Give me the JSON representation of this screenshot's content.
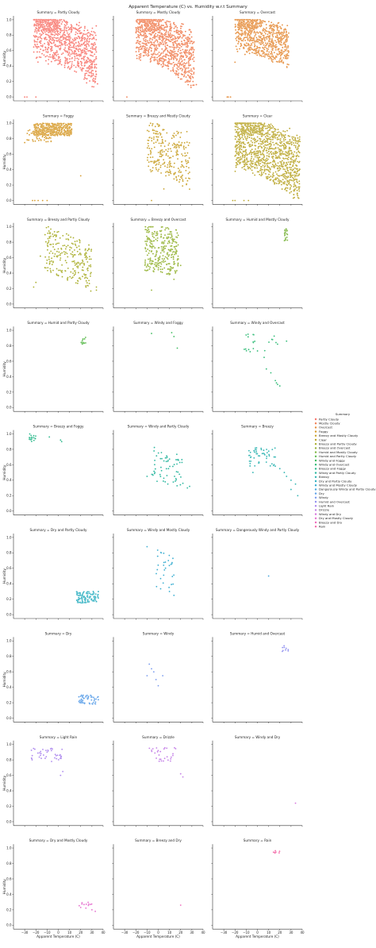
{
  "chart_data": {
    "type": "scatter",
    "title": "Apparent Temperature (C) vs. Humidity w.r.t Summary",
    "xlabel": "Apparent Temperature (C)",
    "ylabel": "Humidity",
    "xlim": [
      -40,
      40
    ],
    "ylim": [
      -0.05,
      1.05
    ],
    "xticks": [
      "−30",
      "−20",
      "−10",
      "0",
      "10",
      "20",
      "30",
      "40"
    ],
    "yticks": [
      "0.0",
      "0.2",
      "0.4",
      "0.6",
      "0.8",
      "1.0"
    ],
    "grid": false,
    "legend": {
      "title": "Summary",
      "placement": "right",
      "entries": [
        {
          "label": "Partly Cloudy",
          "color": "#f8766d"
        },
        {
          "label": "Mostly Cloudy",
          "color": "#f07e52"
        },
        {
          "label": "Overcast",
          "color": "#e58c3a"
        },
        {
          "label": "Foggy",
          "color": "#d69a2a"
        },
        {
          "label": "Breezy and Mostly Cloudy",
          "color": "#c9a12a"
        },
        {
          "label": "Clear",
          "color": "#b9a52a"
        },
        {
          "label": "Breezy and Partly Cloudy",
          "color": "#a9ad2a"
        },
        {
          "label": "Breezy and Overcast",
          "color": "#94b233"
        },
        {
          "label": "Humid and Mostly Cloudy",
          "color": "#7db640"
        },
        {
          "label": "Humid and Partly Cloudy",
          "color": "#5aba4c"
        },
        {
          "label": "Windy and Foggy",
          "color": "#3bbb5c"
        },
        {
          "label": "Windy and Overcast",
          "color": "#2cba74"
        },
        {
          "label": "Breezy and Foggy",
          "color": "#28b88a"
        },
        {
          "label": "Windy and Partly Cloudy",
          "color": "#29b69e"
        },
        {
          "label": "Breezy",
          "color": "#2bb3b0"
        },
        {
          "label": "Dry and Partly Cloudy",
          "color": "#2fb0c1"
        },
        {
          "label": "Windy and Mostly Cloudy",
          "color": "#35acd0"
        },
        {
          "label": "Dangerously Windy and Partly Cloudy",
          "color": "#45a6de"
        },
        {
          "label": "Dry",
          "color": "#5b9fe8"
        },
        {
          "label": "Windy",
          "color": "#7598ee"
        },
        {
          "label": "Humid and Overcast",
          "color": "#9090f0"
        },
        {
          "label": "Light Rain",
          "color": "#ab86ee"
        },
        {
          "label": "Drizzle",
          "color": "#c27ce6"
        },
        {
          "label": "Windy and Dry",
          "color": "#d673dc"
        },
        {
          "label": "Dry and Mostly Cloudy",
          "color": "#e56cce"
        },
        {
          "label": "Breezy and Dry",
          "color": "#ef69bc"
        },
        {
          "label": "Rain",
          "color": "#f36aa8"
        }
      ]
    },
    "panels": [
      {
        "title": "Summary = Partly Cloudy",
        "color": "#f8766d",
        "seed": 11,
        "clusters": [
          {
            "n": 900,
            "x": [
              -22,
              34
            ],
            "y": [
              0.38,
              1.0
            ],
            "tilt": -0.012
          },
          {
            "n": 120,
            "x": [
              -18,
              0
            ],
            "y": [
              0.85,
              1.0
            ],
            "tilt": 0
          }
        ],
        "points": [
          [
            -30,
            0.0
          ],
          [
            -28,
            0.0
          ],
          [
            -20,
            0.0
          ],
          [
            30,
            0.27
          ],
          [
            33,
            0.2
          ],
          [
            35,
            0.17
          ]
        ]
      },
      {
        "title": "Summary = Mostly Cloudy",
        "color": "#f07e52",
        "seed": 23,
        "clusters": [
          {
            "n": 900,
            "x": [
              -20,
              32
            ],
            "y": [
              0.38,
              1.0
            ],
            "tilt": -0.012
          },
          {
            "n": 100,
            "x": [
              -16,
              2
            ],
            "y": [
              0.85,
              1.0
            ],
            "tilt": 0
          }
        ],
        "points": [
          [
            -28,
            0.0
          ],
          [
            28,
            0.25
          ],
          [
            31,
            0.2
          ],
          [
            34,
            0.16
          ]
        ]
      },
      {
        "title": "Summary = Overcast",
        "color": "#e58c3a",
        "seed": 37,
        "clusters": [
          {
            "n": 700,
            "x": [
              -20,
              28
            ],
            "y": [
              0.52,
              1.0
            ],
            "tilt": -0.008
          },
          {
            "n": 80,
            "x": [
              -17,
              0
            ],
            "y": [
              0.88,
              1.0
            ],
            "tilt": 0
          }
        ],
        "points": [
          [
            -27,
            0.0
          ],
          [
            -26,
            0.0
          ],
          [
            -24,
            0.0
          ],
          [
            -20,
            0.45
          ],
          [
            25,
            0.5
          ]
        ]
      },
      {
        "title": "Summary = Foggy",
        "color": "#d69a2a",
        "seed": 41,
        "clusters": [
          {
            "n": 420,
            "x": [
              -22,
              12
            ],
            "y": [
              0.84,
              1.0
            ],
            "tilt": 0
          },
          {
            "n": 60,
            "x": [
              -28,
              -5
            ],
            "y": [
              0.76,
              0.92
            ],
            "tilt": 0
          }
        ],
        "points": [
          [
            -23,
            0.0
          ],
          [
            -21,
            0.0
          ],
          [
            -18,
            0.0
          ],
          [
            -14,
            0.0
          ],
          [
            -10,
            0.0
          ],
          [
            20,
            0.32
          ],
          [
            -30,
            0.75
          ]
        ]
      },
      {
        "title": "Summary = Breezy and Mostly Cloudy",
        "color": "#c9a12a",
        "seed": 53,
        "clusters": [
          {
            "n": 260,
            "x": [
              -10,
              28
            ],
            "y": [
              0.3,
              0.95
            ],
            "tilt": -0.01
          }
        ],
        "points": [
          [
            -6,
            0.0
          ],
          [
            5,
            0.15
          ],
          [
            22,
            0.25
          ]
        ]
      },
      {
        "title": "Summary = Clear",
        "color": "#b9a52a",
        "seed": 67,
        "clusters": [
          {
            "n": 1100,
            "x": [
              -20,
              38
            ],
            "y": [
              0.28,
              1.0
            ],
            "tilt": -0.012
          },
          {
            "n": 120,
            "x": [
              -15,
              5
            ],
            "y": [
              0.85,
              1.0
            ],
            "tilt": 0
          }
        ],
        "points": [
          [
            -22,
            0.0
          ],
          [
            -20,
            0.0
          ],
          [
            -12,
            0.0
          ],
          [
            -8,
            0.0
          ]
        ]
      },
      {
        "title": "Summary = Breezy and Partly Cloudy",
        "color": "#a9ad2a",
        "seed": 71,
        "clusters": [
          {
            "n": 240,
            "x": [
              -12,
              30
            ],
            "y": [
              0.3,
              0.9
            ],
            "tilt": -0.01
          }
        ],
        "points": [
          [
            -22,
            0.22
          ],
          [
            -20,
            0.28
          ],
          [
            34,
            0.22
          ],
          [
            34,
            0.18
          ],
          [
            26,
            0.24
          ],
          [
            -16,
            0.62
          ]
        ]
      },
      {
        "title": "Summary = Breezy and Overcast",
        "color": "#94b233",
        "seed": 83,
        "clusters": [
          {
            "n": 300,
            "x": [
              -12,
              18
            ],
            "y": [
              0.4,
              1.0
            ],
            "tilt": -0.005
          }
        ],
        "points": [
          [
            -6,
            0.18
          ],
          [
            -4,
            0.42
          ],
          [
            14,
            0.32
          ],
          [
            20,
            0.5
          ]
        ]
      },
      {
        "title": "Summary = Humid and Mostly Cloudy",
        "color": "#7db640",
        "seed": 97,
        "clusters": [
          {
            "n": 22,
            "x": [
              24,
              27
            ],
            "y": [
              0.82,
              0.98
            ],
            "tilt": 0
          }
        ],
        "points": []
      },
      {
        "title": "Summary = Humid and Partly Cloudy",
        "color": "#5aba4c",
        "seed": 101,
        "clusters": [
          {
            "n": 14,
            "x": [
              20,
              25
            ],
            "y": [
              0.82,
              0.92
            ],
            "tilt": 0
          }
        ],
        "points": []
      },
      {
        "title": "Summary = Windy and Foggy",
        "color": "#3bbb5c",
        "seed": 0,
        "clusters": [],
        "points": [
          [
            -6,
            0.96
          ],
          [
            12,
            0.97
          ],
          [
            14,
            0.92
          ],
          [
            17,
            0.77
          ]
        ]
      },
      {
        "title": "Summary = Windy and Overcast",
        "color": "#2cba74",
        "seed": 113,
        "clusters": [
          {
            "n": 22,
            "x": [
              -12,
              18
            ],
            "y": [
              0.72,
              0.95
            ],
            "tilt": 0
          }
        ],
        "points": [
          [
            6,
            0.65
          ],
          [
            8,
            0.5
          ],
          [
            12,
            0.45
          ],
          [
            16,
            0.35
          ],
          [
            18,
            0.3
          ],
          [
            20,
            0.28
          ],
          [
            17,
            0.32
          ],
          [
            26,
            0.86
          ]
        ]
      },
      {
        "title": "Summary = Breezy and Foggy",
        "color": "#28b88a",
        "seed": 127,
        "clusters": [
          {
            "n": 18,
            "x": [
              -26,
              -20
            ],
            "y": [
              0.9,
              1.0
            ],
            "tilt": 0
          }
        ],
        "points": [
          [
            -8,
            0.96
          ],
          [
            2,
            0.92
          ],
          [
            3,
            0.9
          ]
        ]
      },
      {
        "title": "Summary = Windy and Partly Cloudy",
        "color": "#29b69e",
        "seed": 131,
        "clusters": [
          {
            "n": 60,
            "x": [
              -6,
              22
            ],
            "y": [
              0.35,
              0.78
            ],
            "tilt": -0.008
          }
        ],
        "points": [
          [
            -10,
            0.45
          ],
          [
            28,
            0.32
          ],
          [
            26,
            0.3
          ],
          [
            22,
            0.36
          ]
        ]
      },
      {
        "title": "Summary = Breezy",
        "color": "#2bb3b0",
        "seed": 139,
        "clusters": [
          {
            "n": 50,
            "x": [
              -8,
              16
            ],
            "y": [
              0.58,
              0.82
            ],
            "tilt": 0
          }
        ],
        "points": [
          [
            20,
            0.55
          ],
          [
            24,
            0.5
          ],
          [
            26,
            0.45
          ],
          [
            30,
            0.4
          ],
          [
            34,
            0.35
          ],
          [
            36,
            0.2
          ],
          [
            30,
            0.28
          ],
          [
            -4,
            0.5
          ]
        ]
      },
      {
        "title": "Summary = Dry and Partly Cloudy",
        "color": "#2fb0c1",
        "seed": 149,
        "clusters": [
          {
            "n": 110,
            "x": [
              16,
              36
            ],
            "y": [
              0.15,
              0.3
            ],
            "tilt": 0
          }
        ],
        "points": []
      },
      {
        "title": "Summary = Windy and Mostly Cloudy",
        "color": "#35acd0",
        "seed": 151,
        "clusters": [
          {
            "n": 30,
            "x": [
              -2,
              14
            ],
            "y": [
              0.3,
              0.8
            ],
            "tilt": -0.01
          }
        ],
        "points": [
          [
            -10,
            0.88
          ],
          [
            10,
            0.3
          ],
          [
            14,
            0.25
          ]
        ]
      },
      {
        "title": "Summary = Dangerously Windy and Partly Cloudy",
        "color": "#45a6de",
        "seed": 0,
        "clusters": [],
        "points": [
          [
            10,
            0.5
          ]
        ]
      },
      {
        "title": "Summary = Dry",
        "color": "#5b9fe8",
        "seed": 163,
        "clusters": [
          {
            "n": 55,
            "x": [
              18,
              36
            ],
            "y": [
              0.18,
              0.3
            ],
            "tilt": 0
          }
        ],
        "points": [
          [
            20,
            0.2
          ]
        ]
      },
      {
        "title": "Summary = Windy",
        "color": "#7598ee",
        "seed": 0,
        "clusters": [],
        "points": [
          [
            -8,
            0.7
          ],
          [
            -6,
            0.64
          ],
          [
            -4,
            0.6
          ],
          [
            -10,
            0.55
          ],
          [
            -2,
            0.5
          ],
          [
            4,
            0.55
          ],
          [
            0,
            0.42
          ]
        ]
      },
      {
        "title": "Summary = Humid and Overcast",
        "color": "#9090f0",
        "seed": 173,
        "clusters": [
          {
            "n": 9,
            "x": [
              22,
              28
            ],
            "y": [
              0.86,
              0.94
            ],
            "tilt": 0
          }
        ],
        "points": []
      },
      {
        "title": "Summary = Light Rain",
        "color": "#ab86ee",
        "seed": 179,
        "clusters": [
          {
            "n": 40,
            "x": [
              -24,
              4
            ],
            "y": [
              0.8,
              0.96
            ],
            "tilt": 0
          }
        ],
        "points": [
          [
            4,
            0.65
          ],
          [
            2,
            0.6
          ],
          [
            -6,
            0.78
          ]
        ]
      },
      {
        "title": "Summary = Drizzle",
        "color": "#c27ce6",
        "seed": 181,
        "clusters": [
          {
            "n": 30,
            "x": [
              -8,
              16
            ],
            "y": [
              0.78,
              0.96
            ],
            "tilt": 0
          }
        ],
        "points": [
          [
            20,
            0.62
          ],
          [
            22,
            0.58
          ]
        ]
      },
      {
        "title": "Summary = Windy and Dry",
        "color": "#d673dc",
        "seed": 0,
        "clusters": [],
        "points": [
          [
            34,
            0.24
          ]
        ]
      },
      {
        "title": "Summary = Dry and Mostly Cloudy",
        "color": "#e56cce",
        "seed": 191,
        "clusters": [
          {
            "n": 12,
            "x": [
              18,
              34
            ],
            "y": [
              0.22,
              0.3
            ],
            "tilt": 0
          }
        ],
        "points": [
          [
            30,
            0.2
          ],
          [
            33,
            0.18
          ]
        ]
      },
      {
        "title": "Summary = Breezy and Dry",
        "color": "#ef69bc",
        "seed": 0,
        "clusters": [],
        "points": [
          [
            20,
            0.26
          ]
        ]
      },
      {
        "title": "Summary = Rain",
        "color": "#f36aa8",
        "seed": 197,
        "clusters": [
          {
            "n": 8,
            "x": [
              14,
              20
            ],
            "y": [
              0.93,
              0.97
            ],
            "tilt": 0
          }
        ],
        "points": []
      }
    ]
  }
}
